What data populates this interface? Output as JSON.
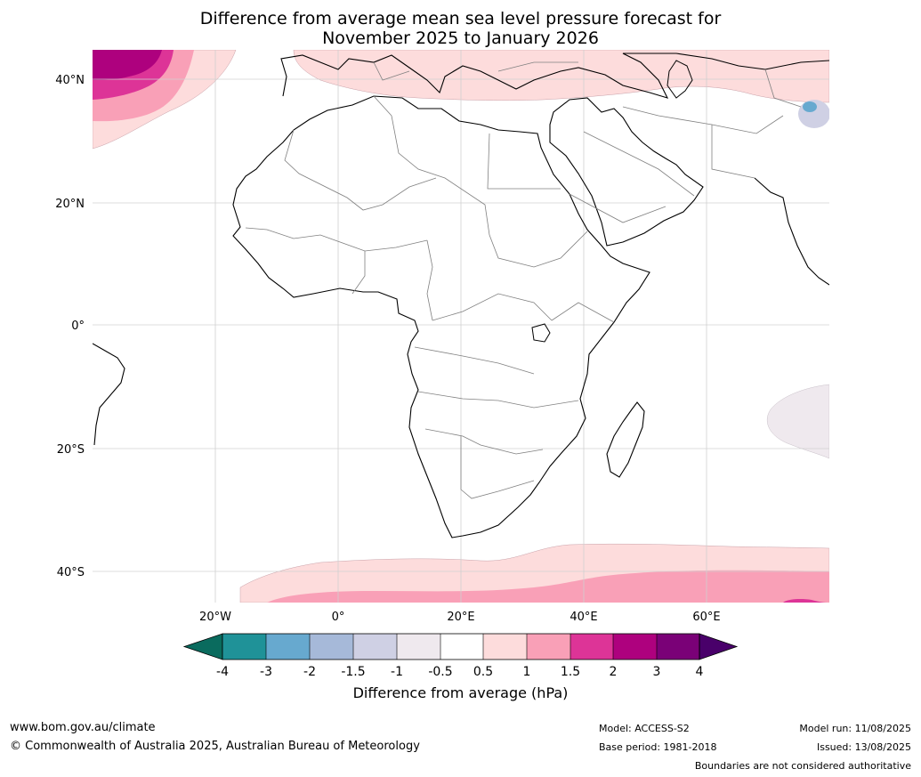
{
  "title": {
    "line1": "Difference from average mean sea level pressure forecast for",
    "line2": "November 2025 to January 2026"
  },
  "axes": {
    "lat_labels": [
      "40°N",
      "20°N",
      "0°",
      "20°S",
      "40°S"
    ],
    "lon_labels": [
      "20°W",
      "0°",
      "20°E",
      "40°E",
      "60°E"
    ]
  },
  "colorbar": {
    "tick_labels": [
      "-4",
      "-3",
      "-2",
      "-1.5",
      "-1",
      "-0.5",
      "0.5",
      "1",
      "1.5",
      "2",
      "3",
      "4"
    ],
    "colors": [
      "#0a6b5e",
      "#1f9298",
      "#67a9cf",
      "#a6b9d9",
      "#cfd0e4",
      "#efe9ee",
      "#ffffff",
      "#fddcdc",
      "#f9a0b7",
      "#dd3497",
      "#ae017e",
      "#7a0177",
      "#49006a"
    ],
    "label": "Difference from average (hPa)"
  },
  "footer": {
    "website": "www.bom.gov.au/climate",
    "copyright": "© Commonwealth of Australia 2025, Australian Bureau of Meteorology",
    "model": "Model: ACCESS-S2",
    "base_period": "Base period: 1981-2018",
    "model_run": "Model run: 11/08/2025",
    "issued": "Issued: 13/08/2025",
    "disclaimer": "Boundaries are not considered authoritative"
  }
}
